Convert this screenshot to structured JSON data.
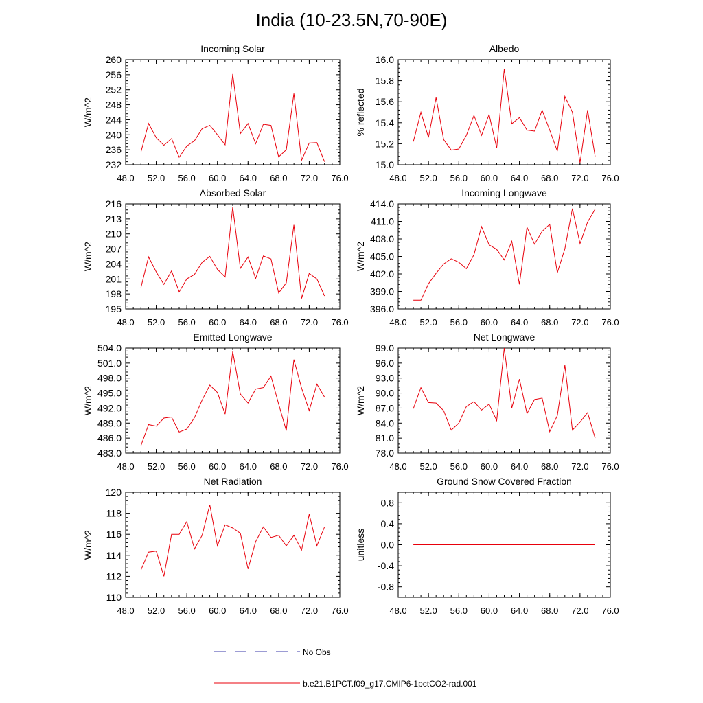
{
  "title": "India (10-23.5N,70-90E)",
  "legend": {
    "obs_label": "No Obs",
    "obs_color": "#3a3aa8",
    "model_label": "b.e21.B1PCT.f09_g17.CMIP6-1pctCO2-rad.001",
    "model_color": "#e8000b"
  },
  "chart_data": [
    {
      "type": "line",
      "title": "Incoming Solar",
      "ylabel": "W/m^2",
      "xlim": [
        48,
        76
      ],
      "xticks": [
        48,
        52,
        56,
        60,
        64,
        68,
        72,
        76
      ],
      "xtick_labels": [
        "48.0",
        "52.0",
        "56.0",
        "60.0",
        "64.0",
        "68.0",
        "72.0",
        "76.0"
      ],
      "ylim": [
        232,
        260
      ],
      "yticks": [
        232,
        236,
        240,
        244,
        248,
        252,
        256,
        260
      ],
      "ytick_labels": [
        "232",
        "236",
        "240",
        "244",
        "248",
        "252",
        "256",
        "260"
      ],
      "series": [
        {
          "x": [
            50,
            51,
            52,
            53,
            54,
            55,
            56,
            57,
            58,
            59,
            60,
            61,
            62,
            63,
            64,
            65,
            66,
            67,
            68,
            69,
            70,
            71,
            72,
            73,
            74
          ],
          "values": [
            235.4,
            243.0,
            239.2,
            237.2,
            239.0,
            234.0,
            237.0,
            238.4,
            241.6,
            242.5,
            240.0,
            237.3,
            256.2,
            240.3,
            243.0,
            237.6,
            242.8,
            242.5,
            234.1,
            236.0,
            251.0,
            233.2,
            237.8,
            237.9,
            232.8
          ]
        }
      ]
    },
    {
      "type": "line",
      "title": "Albedo",
      "ylabel": "% reflected",
      "xlim": [
        48,
        76
      ],
      "xticks": [
        48,
        52,
        56,
        60,
        64,
        68,
        72,
        76
      ],
      "xtick_labels": [
        "48.0",
        "52.0",
        "56.0",
        "60.0",
        "64.0",
        "68.0",
        "72.0",
        "76.0"
      ],
      "ylim": [
        15.0,
        16.0
      ],
      "yticks": [
        15.0,
        15.2,
        15.4,
        15.6,
        15.8,
        16.0
      ],
      "ytick_labels": [
        "15.0",
        "15.2",
        "15.4",
        "15.6",
        "15.8",
        "16.0"
      ],
      "series": [
        {
          "x": [
            50,
            51,
            52,
            53,
            54,
            55,
            56,
            57,
            58,
            59,
            60,
            61,
            62,
            63,
            64,
            65,
            66,
            67,
            68,
            69,
            70,
            71,
            72,
            73,
            74
          ],
          "values": [
            15.22,
            15.5,
            15.26,
            15.64,
            15.24,
            15.14,
            15.15,
            15.28,
            15.47,
            15.28,
            15.48,
            15.16,
            15.91,
            15.39,
            15.45,
            15.33,
            15.32,
            15.52,
            15.33,
            15.13,
            15.65,
            15.5,
            15.02,
            15.52,
            15.08
          ]
        }
      ]
    },
    {
      "type": "line",
      "title": "Absorbed Solar",
      "ylabel": "W/m^2",
      "xlim": [
        48,
        76
      ],
      "xticks": [
        48,
        52,
        56,
        60,
        64,
        68,
        72,
        76
      ],
      "xtick_labels": [
        "48.0",
        "52.0",
        "56.0",
        "60.0",
        "64.0",
        "68.0",
        "72.0",
        "76.0"
      ],
      "ylim": [
        195,
        216
      ],
      "yticks": [
        195,
        198,
        201,
        204,
        207,
        210,
        213,
        216
      ],
      "ytick_labels": [
        "195",
        "198",
        "201",
        "204",
        "207",
        "210",
        "213",
        "216"
      ],
      "series": [
        {
          "x": [
            50,
            51,
            52,
            53,
            54,
            55,
            56,
            57,
            58,
            59,
            60,
            61,
            62,
            63,
            64,
            65,
            66,
            67,
            68,
            69,
            70,
            71,
            72,
            73,
            74
          ],
          "values": [
            199.3,
            205.4,
            202.4,
            199.9,
            202.6,
            198.4,
            201.0,
            201.9,
            204.3,
            205.5,
            202.9,
            201.4,
            215.4,
            203.1,
            205.4,
            201.1,
            205.6,
            205.0,
            198.2,
            200.2,
            211.8,
            197.1,
            202.1,
            201.0,
            197.6
          ]
        }
      ]
    },
    {
      "type": "line",
      "title": "Incoming Longwave",
      "ylabel": "W/m^2",
      "xlim": [
        48,
        76
      ],
      "xticks": [
        48,
        52,
        56,
        60,
        64,
        68,
        72,
        76
      ],
      "xtick_labels": [
        "48.0",
        "52.0",
        "56.0",
        "60.0",
        "64.0",
        "68.0",
        "72.0",
        "76.0"
      ],
      "ylim": [
        396.0,
        414.0
      ],
      "yticks": [
        396.0,
        399.0,
        402.0,
        405.0,
        408.0,
        411.0,
        414.0
      ],
      "ytick_labels": [
        "396.0",
        "399.0",
        "402.0",
        "405.0",
        "408.0",
        "411.0",
        "414.0"
      ],
      "series": [
        {
          "x": [
            50,
            51,
            52,
            53,
            54,
            55,
            56,
            57,
            58,
            59,
            60,
            61,
            62,
            63,
            64,
            65,
            66,
            67,
            68,
            69,
            70,
            71,
            72,
            73,
            74
          ],
          "values": [
            397.5,
            397.5,
            400.3,
            402.1,
            403.7,
            404.6,
            404.0,
            402.9,
            405.3,
            410.1,
            407.0,
            406.2,
            404.4,
            407.6,
            400.2,
            410.0,
            407.1,
            409.3,
            410.5,
            402.2,
            406.3,
            413.2,
            407.2,
            410.9,
            413.1
          ]
        }
      ]
    },
    {
      "type": "line",
      "title": "Emitted Longwave",
      "ylabel": "W/m^2",
      "xlim": [
        48,
        76
      ],
      "xticks": [
        48,
        52,
        56,
        60,
        64,
        68,
        72,
        76
      ],
      "xtick_labels": [
        "48.0",
        "52.0",
        "56.0",
        "60.0",
        "64.0",
        "68.0",
        "72.0",
        "76.0"
      ],
      "ylim": [
        483.0,
        504.0
      ],
      "yticks": [
        483.0,
        486.0,
        489.0,
        492.0,
        495.0,
        498.0,
        501.0,
        504.0
      ],
      "ytick_labels": [
        "483.0",
        "486.0",
        "489.0",
        "492.0",
        "495.0",
        "498.0",
        "501.0",
        "504.0"
      ],
      "series": [
        {
          "x": [
            50,
            51,
            52,
            53,
            54,
            55,
            56,
            57,
            58,
            59,
            60,
            61,
            62,
            63,
            64,
            65,
            66,
            67,
            68,
            69,
            70,
            71,
            72,
            73,
            74
          ],
          "values": [
            484.5,
            488.7,
            488.4,
            490.0,
            490.2,
            487.2,
            487.8,
            490.1,
            493.6,
            496.6,
            495.1,
            490.8,
            503.3,
            494.8,
            493.0,
            495.8,
            496.1,
            498.4,
            492.8,
            487.5,
            501.7,
            496.0,
            491.5,
            496.8,
            494.2
          ]
        }
      ]
    },
    {
      "type": "line",
      "title": "Net Longwave",
      "ylabel": "W/m^2",
      "xlim": [
        48,
        76
      ],
      "xticks": [
        48,
        52,
        56,
        60,
        64,
        68,
        72,
        76
      ],
      "xtick_labels": [
        "48.0",
        "52.0",
        "56.0",
        "60.0",
        "64.0",
        "68.0",
        "72.0",
        "76.0"
      ],
      "ylim": [
        78.0,
        99.0
      ],
      "yticks": [
        78.0,
        81.0,
        84.0,
        87.0,
        90.0,
        93.0,
        96.0,
        99.0
      ],
      "ytick_labels": [
        "78.0",
        "81.0",
        "84.0",
        "87.0",
        "90.0",
        "93.0",
        "96.0",
        "99.0"
      ],
      "series": [
        {
          "x": [
            50,
            51,
            52,
            53,
            54,
            55,
            56,
            57,
            58,
            59,
            60,
            61,
            62,
            63,
            64,
            65,
            66,
            67,
            68,
            69,
            70,
            71,
            72,
            73,
            74
          ],
          "values": [
            86.9,
            91.1,
            88.1,
            88.0,
            86.5,
            82.6,
            84.0,
            87.3,
            88.3,
            86.6,
            87.8,
            84.5,
            99.0,
            87.0,
            92.8,
            85.9,
            88.7,
            89.0,
            82.3,
            85.5,
            95.6,
            82.6,
            84.2,
            86.1,
            81.0
          ]
        }
      ]
    },
    {
      "type": "line",
      "title": "Net Radiation",
      "ylabel": "W/m^2",
      "xlim": [
        48,
        76
      ],
      "xticks": [
        48,
        52,
        56,
        60,
        64,
        68,
        72,
        76
      ],
      "xtick_labels": [
        "48.0",
        "52.0",
        "56.0",
        "60.0",
        "64.0",
        "68.0",
        "72.0",
        "76.0"
      ],
      "ylim": [
        110,
        120
      ],
      "yticks": [
        110,
        112,
        114,
        116,
        118,
        120
      ],
      "ytick_labels": [
        "110",
        "112",
        "114",
        "116",
        "118",
        "120"
      ],
      "series": [
        {
          "x": [
            50,
            51,
            52,
            53,
            54,
            55,
            56,
            57,
            58,
            59,
            60,
            61,
            62,
            63,
            64,
            65,
            66,
            67,
            68,
            69,
            70,
            71,
            72,
            73,
            74
          ],
          "values": [
            112.6,
            114.3,
            114.4,
            112.0,
            116.0,
            116.0,
            117.2,
            114.6,
            115.9,
            118.8,
            114.9,
            116.9,
            116.6,
            116.1,
            112.7,
            115.3,
            116.7,
            115.7,
            115.9,
            114.9,
            115.9,
            114.5,
            117.9,
            114.9,
            116.7
          ]
        }
      ]
    },
    {
      "type": "line",
      "title": "Ground Snow Covered Fraction",
      "ylabel": "unitless",
      "xlim": [
        48,
        76
      ],
      "xticks": [
        48,
        52,
        56,
        60,
        64,
        68,
        72,
        76
      ],
      "xtick_labels": [
        "48.0",
        "52.0",
        "56.0",
        "60.0",
        "64.0",
        "68.0",
        "72.0",
        "76.0"
      ],
      "ylim": [
        -1.0,
        1.0
      ],
      "yticks": [
        -0.8,
        -0.4,
        0.0,
        0.4,
        0.8
      ],
      "ytick_labels": [
        "-0.8",
        "-0.4",
        "0.0",
        "0.4",
        "0.8"
      ],
      "series": [
        {
          "x": [
            50,
            51,
            52,
            53,
            54,
            55,
            56,
            57,
            58,
            59,
            60,
            61,
            62,
            63,
            64,
            65,
            66,
            67,
            68,
            69,
            70,
            71,
            72,
            73,
            74
          ],
          "values": [
            0,
            0,
            0,
            0,
            0,
            0,
            0,
            0,
            0,
            0,
            0,
            0,
            0,
            0,
            0,
            0,
            0,
            0,
            0,
            0,
            0,
            0,
            0,
            0,
            0
          ]
        }
      ]
    }
  ]
}
